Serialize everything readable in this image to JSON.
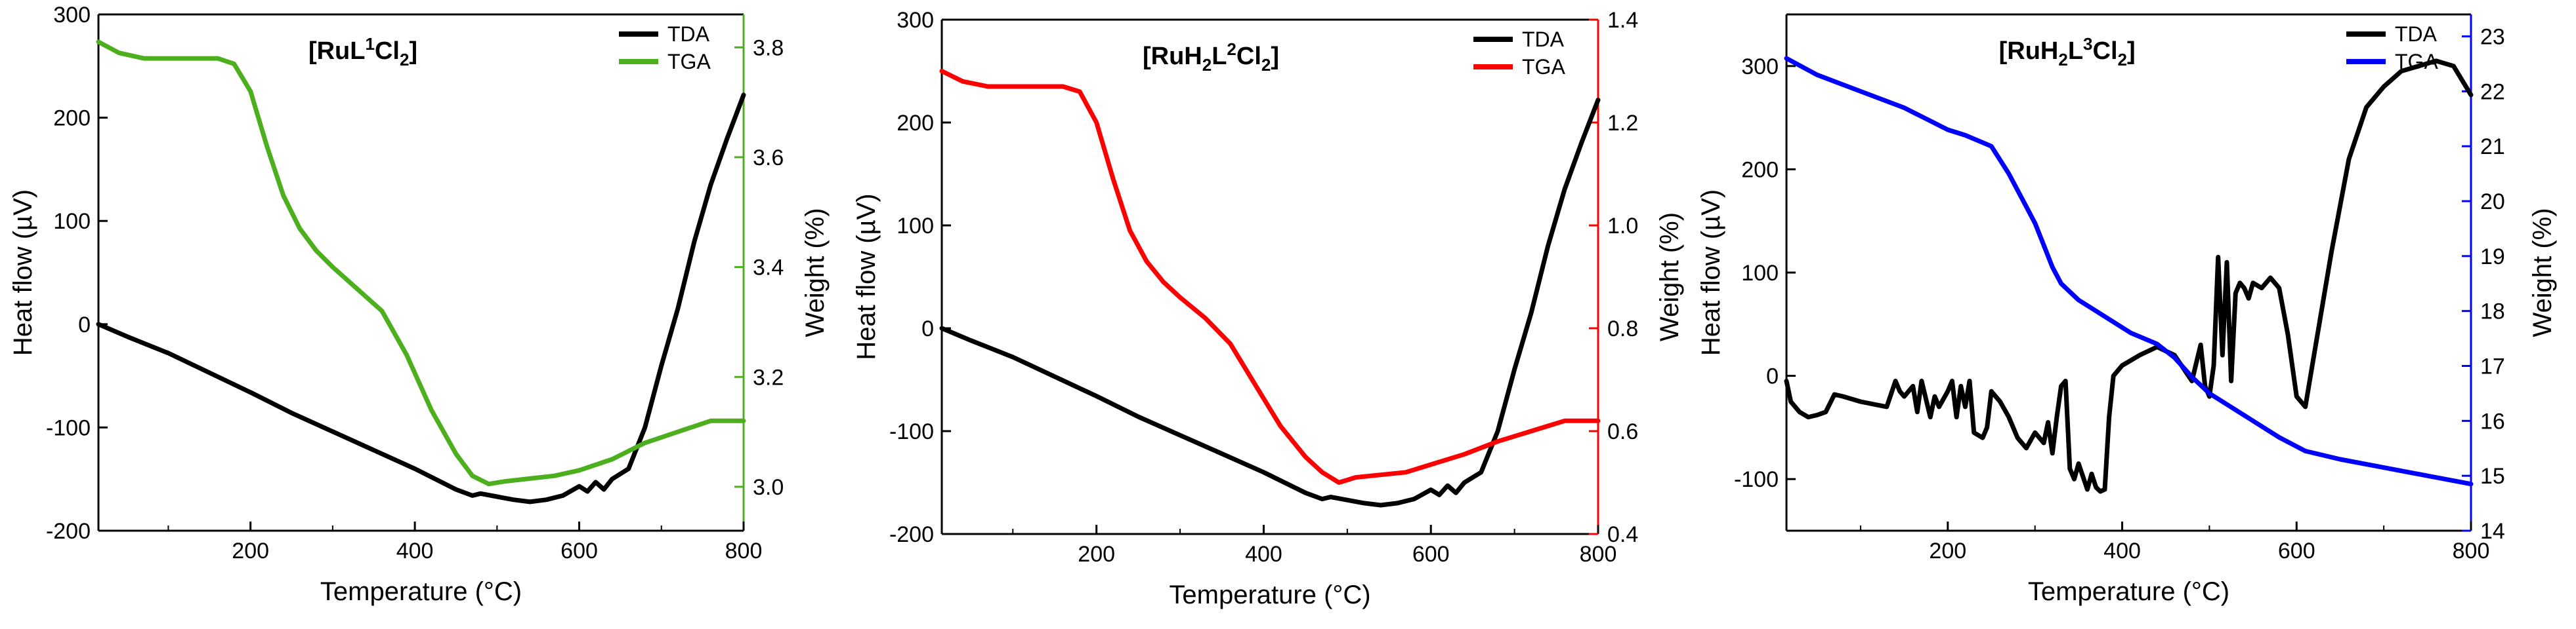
{
  "chart_data": [
    {
      "type": "line",
      "title_parts": [
        "[RuL",
        "1",
        "Cl",
        "2",
        "]"
      ],
      "xlabel": "Temperature (°C)",
      "ylabel": "Heat flow (µV)",
      "ylabel_right": "Weight (%)",
      "xlim": [
        15,
        800
      ],
      "ylim": [
        -200,
        300
      ],
      "ylim_right": [
        2.92,
        3.86
      ],
      "xticks": [
        "200",
        "400",
        "600",
        "800"
      ],
      "yticks": [
        "-200",
        "-100",
        "0",
        "100",
        "200",
        "300"
      ],
      "yticks_right": [
        "3.0",
        "3.2",
        "3.4",
        "3.6",
        "3.8"
      ],
      "right_color": "#4caf1e",
      "series": [
        {
          "name": "TDA",
          "axis": "left",
          "color": "#000000",
          "x": [
            15,
            50,
            100,
            150,
            200,
            250,
            300,
            350,
            400,
            450,
            470,
            480,
            500,
            520,
            540,
            560,
            580,
            600,
            610,
            620,
            630,
            640,
            660,
            680,
            700,
            720,
            740,
            760,
            780,
            800
          ],
          "y": [
            0,
            -12,
            -28,
            -47,
            -66,
            -86,
            -104,
            -122,
            -140,
            -160,
            -166,
            -164,
            -167,
            -170,
            -172,
            -170,
            -166,
            -157,
            -162,
            -153,
            -160,
            -150,
            -140,
            -100,
            -40,
            15,
            80,
            135,
            180,
            222
          ]
        },
        {
          "name": "TGA",
          "axis": "right",
          "color": "#4caf1e",
          "x": [
            15,
            40,
            70,
            100,
            130,
            160,
            180,
            200,
            220,
            240,
            260,
            280,
            300,
            330,
            360,
            390,
            420,
            450,
            470,
            490,
            510,
            540,
            570,
            600,
            640,
            680,
            720,
            740,
            760,
            780,
            800
          ],
          "y": [
            3.81,
            3.79,
            3.78,
            3.78,
            3.78,
            3.78,
            3.77,
            3.72,
            3.62,
            3.53,
            3.47,
            3.43,
            3.4,
            3.36,
            3.32,
            3.24,
            3.14,
            3.06,
            3.02,
            3.005,
            3.01,
            3.015,
            3.02,
            3.03,
            3.05,
            3.08,
            3.1,
            3.11,
            3.12,
            3.12,
            3.12
          ]
        }
      ],
      "legend": {
        "entries": [
          "TDA",
          "TGA"
        ],
        "position": "top-right"
      }
    },
    {
      "type": "line",
      "title_parts": [
        "[RuH",
        "2",
        "L",
        "2",
        "Cl",
        "2",
        "]"
      ],
      "xlabel": "Temperature (°C)",
      "ylabel": "Heat flow (µV)",
      "ylabel_right": "Weight (%)",
      "xlim": [
        15,
        800
      ],
      "ylim": [
        -200,
        300
      ],
      "ylim_right": [
        0.4,
        1.4
      ],
      "xticks": [
        "200",
        "400",
        "600",
        "800"
      ],
      "yticks": [
        "-200",
        "-100",
        "0",
        "100",
        "200",
        "300"
      ],
      "yticks_right": [
        "0.4",
        "0.6",
        "0.8",
        "1.0",
        "1.2",
        "1.4"
      ],
      "right_color": "#ff0000",
      "series": [
        {
          "name": "TDA",
          "axis": "left",
          "color": "#000000",
          "x": [
            15,
            50,
            100,
            150,
            200,
            250,
            300,
            350,
            400,
            450,
            470,
            480,
            500,
            520,
            540,
            560,
            580,
            600,
            610,
            620,
            630,
            640,
            660,
            680,
            700,
            720,
            740,
            760,
            780,
            800
          ],
          "y": [
            0,
            -12,
            -28,
            -47,
            -66,
            -86,
            -104,
            -122,
            -140,
            -160,
            -166,
            -164,
            -167,
            -170,
            -172,
            -170,
            -166,
            -157,
            -162,
            -153,
            -160,
            -150,
            -140,
            -100,
            -40,
            15,
            80,
            135,
            180,
            222
          ]
        },
        {
          "name": "TGA",
          "axis": "right",
          "color": "#ff0000",
          "x": [
            15,
            40,
            70,
            100,
            130,
            160,
            180,
            200,
            220,
            240,
            260,
            280,
            300,
            330,
            360,
            390,
            420,
            450,
            470,
            490,
            510,
            540,
            570,
            600,
            640,
            680,
            720,
            740,
            760,
            780,
            800
          ],
          "y": [
            1.3,
            1.28,
            1.27,
            1.27,
            1.27,
            1.27,
            1.26,
            1.2,
            1.09,
            0.99,
            0.93,
            0.89,
            0.86,
            0.82,
            0.77,
            0.69,
            0.61,
            0.55,
            0.52,
            0.5,
            0.51,
            0.515,
            0.52,
            0.535,
            0.555,
            0.58,
            0.6,
            0.61,
            0.62,
            0.62,
            0.62
          ]
        }
      ],
      "legend": {
        "entries": [
          "TDA",
          "TGA"
        ],
        "position": "top-right"
      }
    },
    {
      "type": "line",
      "title_parts": [
        "[RuH",
        "2",
        "L",
        "3",
        "Cl",
        "2",
        "]"
      ],
      "xlabel": "Temperature (°C)",
      "ylabel": "Heat flow (µV)",
      "ylabel_right": "Weight (%)",
      "xlim": [
        15,
        800
      ],
      "ylim": [
        -150,
        350
      ],
      "ylim_right": [
        14,
        23.4
      ],
      "xticks": [
        "200",
        "400",
        "600",
        "800"
      ],
      "yticks": [
        "-100",
        "0",
        "100",
        "200",
        "300"
      ],
      "yticks_right": [
        "14",
        "15",
        "16",
        "17",
        "18",
        "19",
        "20",
        "21",
        "22",
        "23"
      ],
      "right_color": "#0000ff",
      "series": [
        {
          "name": "TDA",
          "axis": "left",
          "color": "#000000",
          "x": [
            15,
            20,
            30,
            40,
            50,
            60,
            70,
            80,
            100,
            130,
            140,
            145,
            150,
            160,
            165,
            170,
            180,
            185,
            190,
            200,
            205,
            210,
            215,
            220,
            225,
            230,
            240,
            245,
            250,
            260,
            270,
            280,
            290,
            300,
            310,
            315,
            320,
            325,
            330,
            335,
            340,
            345,
            350,
            360,
            365,
            370,
            375,
            380,
            385,
            390,
            400,
            420,
            440,
            460,
            480,
            490,
            495,
            500,
            505,
            510,
            515,
            520,
            525,
            530,
            535,
            540,
            545,
            550,
            560,
            570,
            580,
            590,
            600,
            610,
            620,
            640,
            660,
            680,
            700,
            720,
            740,
            760,
            780,
            800
          ],
          "y": [
            -5,
            -25,
            -35,
            -40,
            -38,
            -35,
            -18,
            -20,
            -25,
            -30,
            -5,
            -15,
            -20,
            -10,
            -35,
            -5,
            -40,
            -20,
            -30,
            -15,
            -5,
            -40,
            -10,
            -30,
            -5,
            -55,
            -60,
            -50,
            -15,
            -25,
            -40,
            -60,
            -70,
            -55,
            -65,
            -45,
            -75,
            -40,
            -10,
            -5,
            -90,
            -100,
            -85,
            -110,
            -95,
            -108,
            -112,
            -110,
            -40,
            0,
            10,
            20,
            28,
            20,
            -5,
            30,
            -10,
            -20,
            10,
            115,
            20,
            110,
            -5,
            80,
            90,
            85,
            75,
            90,
            85,
            95,
            85,
            40,
            -20,
            -30,
            20,
            120,
            210,
            260,
            280,
            295,
            300,
            305,
            300,
            272
          ],
          "ylabel_note": ""
        },
        {
          "name": "TGA",
          "axis": "right",
          "color": "#0000ff",
          "x": [
            15,
            50,
            100,
            150,
            200,
            220,
            250,
            270,
            290,
            300,
            310,
            320,
            330,
            350,
            380,
            410,
            440,
            460,
            480,
            500,
            520,
            550,
            580,
            610,
            650,
            700,
            750,
            800
          ],
          "y": [
            22.6,
            22.3,
            22.0,
            21.7,
            21.3,
            21.2,
            21.0,
            20.5,
            19.9,
            19.6,
            19.2,
            18.8,
            18.5,
            18.2,
            17.9,
            17.6,
            17.4,
            17.15,
            16.8,
            16.5,
            16.3,
            16.0,
            15.7,
            15.45,
            15.3,
            15.15,
            15.0,
            14.85
          ]
        }
      ],
      "legend": {
        "entries": [
          "TDA",
          "TGA"
        ],
        "position": "top-right"
      }
    }
  ]
}
